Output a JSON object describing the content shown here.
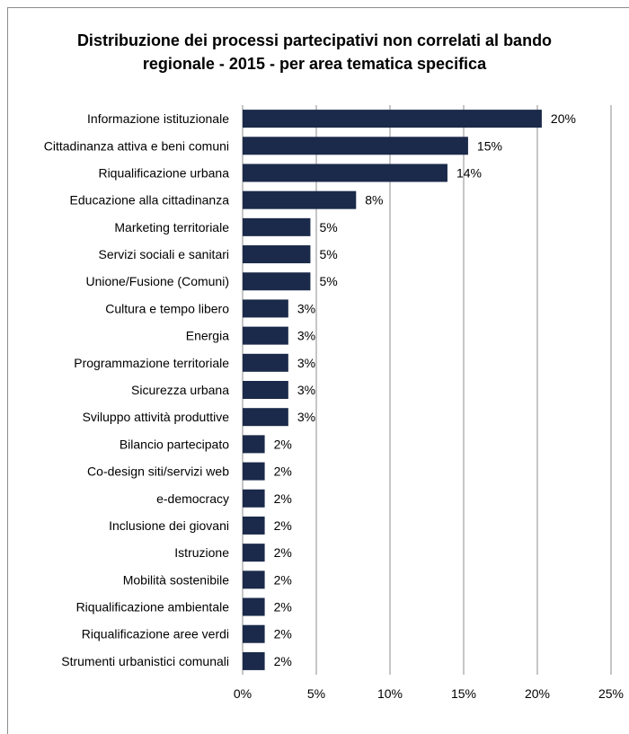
{
  "chart_data": {
    "type": "bar",
    "orientation": "horizontal",
    "title": "Distribuzione dei processi partecipativi non correlati al bando regionale - 2015 - per area tematica specifica",
    "title_lines": [
      "Distribuzione dei processi partecipativi non correlati al bando",
      "regionale - 2015 - per area tematica specifica"
    ],
    "categories": [
      "Informazione istituzionale",
      "Cittadinanza attiva e beni comuni",
      "Riqualificazione urbana",
      "Educazione alla cittadinanza",
      "Marketing territoriale",
      "Servizi sociali e sanitari",
      "Unione/Fusione (Comuni)",
      "Cultura e tempo libero",
      "Energia",
      "Programmazione territoriale",
      "Sicurezza urbana",
      "Sviluppo attività produttive",
      "Bilancio partecipato",
      "Co-design siti/servizi web",
      "e-democracy",
      "Inclusione dei giovani",
      "Istruzione",
      "Mobilità sostenibile",
      "Riqualificazione ambientale",
      "Riqualificazione aree verdi",
      "Strumenti urbanistici comunali"
    ],
    "values": [
      20.3,
      15.3,
      13.9,
      7.7,
      4.6,
      4.6,
      4.6,
      3.1,
      3.1,
      3.1,
      3.1,
      3.1,
      1.5,
      1.5,
      1.5,
      1.5,
      1.5,
      1.5,
      1.5,
      1.5,
      1.5
    ],
    "value_labels": [
      "20%",
      "15%",
      "14%",
      "8%",
      "5%",
      "5%",
      "5%",
      "3%",
      "3%",
      "3%",
      "3%",
      "3%",
      "2%",
      "2%",
      "2%",
      "2%",
      "2%",
      "2%",
      "2%",
      "2%",
      "2%"
    ],
    "xlim": [
      0,
      25
    ],
    "x_ticks": [
      0,
      5,
      10,
      15,
      20,
      25
    ],
    "x_tick_labels": [
      "0%",
      "5%",
      "10%",
      "15%",
      "20%",
      "25%"
    ],
    "grid": true,
    "legend": "none",
    "colors": {
      "bar": "#1b2a4a",
      "grid": "#8c8c8c",
      "axis": "#8c8c8c",
      "frame": "#8c8c8c"
    }
  }
}
